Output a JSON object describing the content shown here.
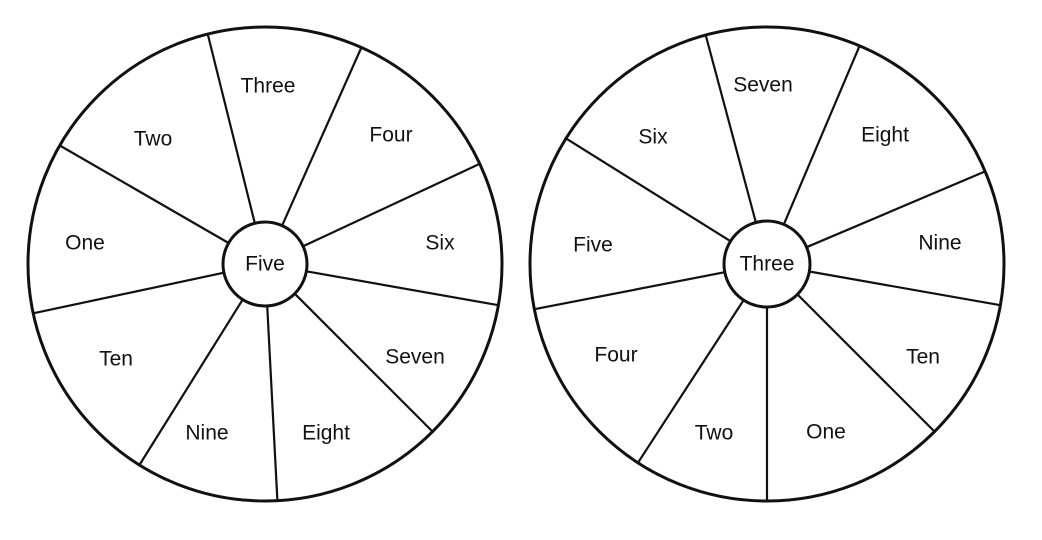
{
  "wheels": [
    {
      "center_label": "Five",
      "segments": [
        "Three",
        "Four",
        "Six",
        "Seven",
        "Eight",
        "Nine",
        "Ten",
        "One",
        "Two"
      ]
    },
    {
      "center_label": "Three",
      "segments": [
        "Seven",
        "Eight",
        "Nine",
        "Ten",
        "One",
        "Two",
        "Four",
        "Five",
        "Six"
      ]
    }
  ]
}
